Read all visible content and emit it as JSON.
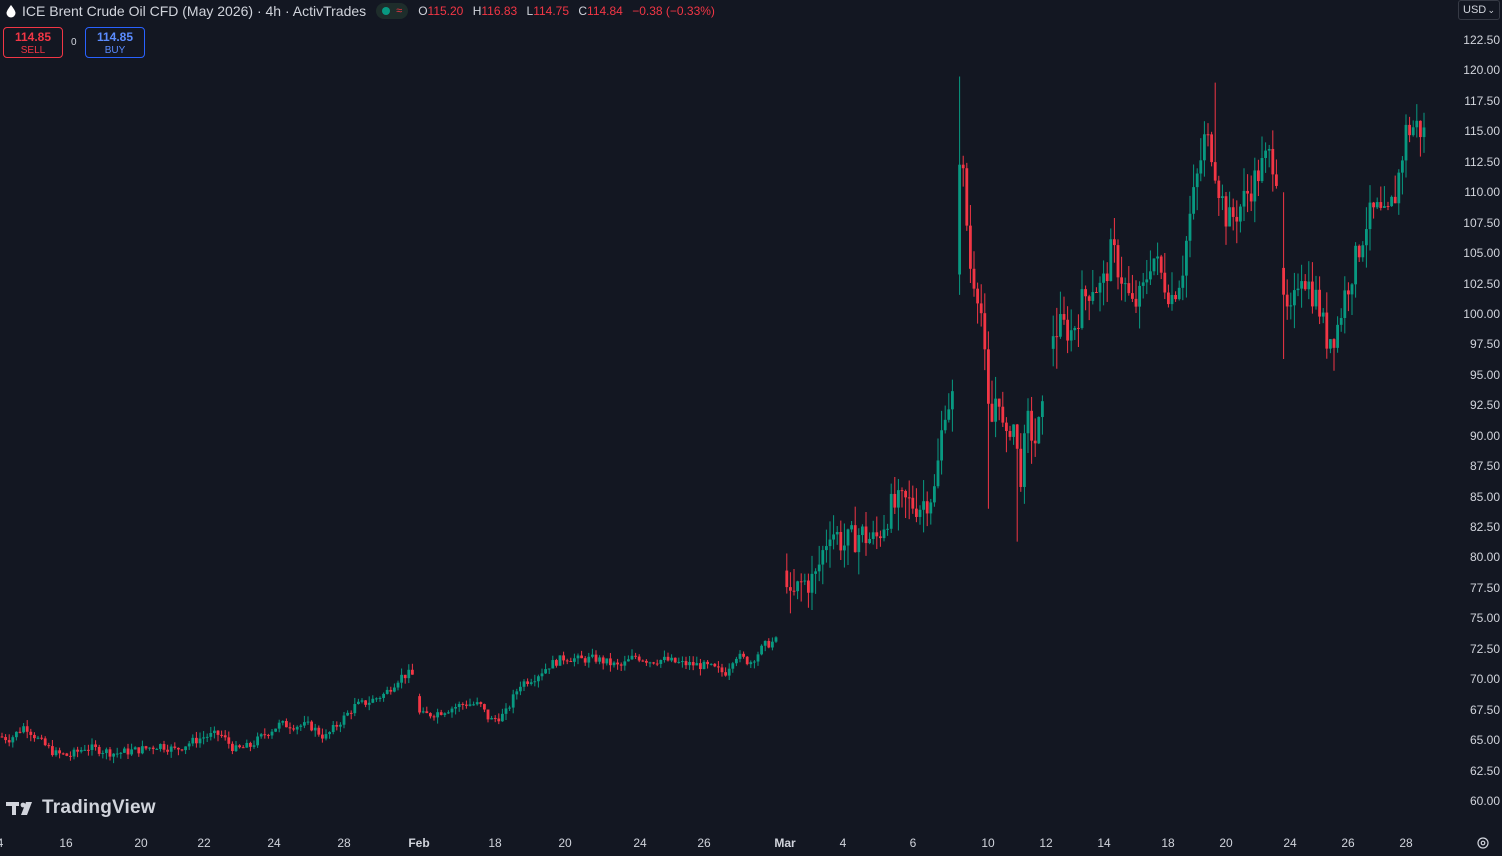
{
  "header": {
    "title": "ICE Brent Crude Oil CFD (May 2026) · 4h · ActivTrades",
    "approx_symbol": "≈",
    "ohlc": [
      {
        "k": "O",
        "v": "115.20"
      },
      {
        "k": "H",
        "v": "116.83"
      },
      {
        "k": "L",
        "v": "114.75"
      },
      {
        "k": "C",
        "v": "114.84"
      }
    ],
    "change": "−0.38 (−0.33%)"
  },
  "trade": {
    "sell_price": "114.85",
    "sell_label": "SELL",
    "spread": "0",
    "buy_price": "114.85",
    "buy_label": "BUY"
  },
  "currency": "USD",
  "logo_text": "TradingView",
  "colors": {
    "up": "#089981",
    "down": "#f23645",
    "background": "#131722",
    "text": "#d1d4dc",
    "buy": "#2962ff"
  },
  "chart_data": {
    "type": "candlestick",
    "title": "ICE Brent Crude Oil CFD (May 2026) · 4h · ActivTrades",
    "ylim": [
      60,
      122.5
    ],
    "y_ticks": [
      "122.50",
      "120.00",
      "117.50",
      "115.00",
      "112.50",
      "110.00",
      "107.50",
      "105.00",
      "102.50",
      "100.00",
      "97.50",
      "95.00",
      "92.50",
      "90.00",
      "87.50",
      "85.00",
      "82.50",
      "80.00",
      "77.50",
      "75.00",
      "72.50",
      "70.00",
      "67.50",
      "65.00",
      "62.50",
      "60.00"
    ],
    "x_ticks": [
      "16",
      "20",
      "22",
      "24",
      "28",
      "Feb",
      "18",
      "20",
      "24",
      "26",
      "Mar",
      "4",
      "6",
      "10",
      "12",
      "14",
      "18",
      "20",
      "24",
      "26",
      "28"
    ],
    "x_ticks_partial_left": "4",
    "close_path": [
      [
        0,
        65.3
      ],
      [
        10,
        65.1
      ],
      [
        25,
        66.2
      ],
      [
        40,
        64.9
      ],
      [
        55,
        63.9
      ],
      [
        70,
        63.7
      ],
      [
        85,
        64.4
      ],
      [
        100,
        64.2
      ],
      [
        115,
        63.9
      ],
      [
        130,
        64.1
      ],
      [
        145,
        64.3
      ],
      [
        160,
        64.6
      ],
      [
        175,
        64.2
      ],
      [
        190,
        64.8
      ],
      [
        205,
        65.3
      ],
      [
        220,
        65.5
      ],
      [
        235,
        64.2
      ],
      [
        250,
        64.5
      ],
      [
        265,
        65.5
      ],
      [
        280,
        66.3
      ],
      [
        295,
        66.2
      ],
      [
        310,
        66.2
      ],
      [
        325,
        65.2
      ],
      [
        340,
        66.5
      ],
      [
        355,
        67.8
      ],
      [
        370,
        68.2
      ],
      [
        385,
        68.8
      ],
      [
        400,
        70.2
      ],
      [
        412,
        70.5
      ],
      [
        420,
        67.0
      ],
      [
        435,
        67.2
      ],
      [
        450,
        67.6
      ],
      [
        465,
        68.0
      ],
      [
        480,
        67.9
      ],
      [
        490,
        66.6
      ],
      [
        505,
        67.1
      ],
      [
        520,
        69.6
      ],
      [
        535,
        70.2
      ],
      [
        550,
        71.2
      ],
      [
        565,
        71.8
      ],
      [
        580,
        71.6
      ],
      [
        595,
        71.7
      ],
      [
        610,
        71.3
      ],
      [
        620,
        71.0
      ],
      [
        635,
        71.9
      ],
      [
        650,
        71.5
      ],
      [
        665,
        71.6
      ],
      [
        680,
        71.3
      ],
      [
        695,
        71.2
      ],
      [
        710,
        71.0
      ],
      [
        725,
        70.5
      ],
      [
        735,
        72.0
      ],
      [
        750,
        71.4
      ],
      [
        765,
        72.8
      ],
      [
        778,
        73.2
      ],
      [
        785,
        80.0
      ],
      [
        790,
        76.1
      ],
      [
        800,
        77.8
      ],
      [
        815,
        78.2
      ],
      [
        830,
        82.5
      ],
      [
        845,
        81.0
      ],
      [
        860,
        82.0
      ],
      [
        875,
        81.3
      ],
      [
        890,
        84.0
      ],
      [
        905,
        84.5
      ],
      [
        920,
        84.3
      ],
      [
        935,
        85.5
      ],
      [
        945,
        92.5
      ],
      [
        953,
        93.1
      ],
      [
        960,
        114.5
      ],
      [
        970,
        104.0
      ],
      [
        980,
        101.5
      ],
      [
        990,
        90.0
      ],
      [
        998,
        94.5
      ],
      [
        1005,
        88.5
      ],
      [
        1012,
        92.0
      ],
      [
        1020,
        86.5
      ],
      [
        1028,
        91.0
      ],
      [
        1035,
        89.5
      ],
      [
        1045,
        92.5
      ],
      [
        1052,
        98.5
      ],
      [
        1062,
        99.0
      ],
      [
        1072,
        98.5
      ],
      [
        1082,
        101.0
      ],
      [
        1092,
        102.5
      ],
      [
        1102,
        102.0
      ],
      [
        1112,
        105.3
      ],
      [
        1122,
        103.0
      ],
      [
        1132,
        100.5
      ],
      [
        1142,
        101.5
      ],
      [
        1152,
        105.0
      ],
      [
        1162,
        103.0
      ],
      [
        1172,
        101.5
      ],
      [
        1182,
        103.5
      ],
      [
        1190,
        108.0
      ],
      [
        1198,
        111.5
      ],
      [
        1205,
        114.5
      ],
      [
        1212,
        113.5
      ],
      [
        1220,
        110.0
      ],
      [
        1228,
        107.5
      ],
      [
        1238,
        108.5
      ],
      [
        1248,
        110.0
      ],
      [
        1258,
        111.5
      ],
      [
        1268,
        113.0
      ],
      [
        1276,
        112.5
      ],
      [
        1282,
        100.5
      ],
      [
        1292,
        99.5
      ],
      [
        1300,
        104.0
      ],
      [
        1308,
        102.5
      ],
      [
        1318,
        101.0
      ],
      [
        1326,
        98.0
      ],
      [
        1336,
        98.5
      ],
      [
        1346,
        102.0
      ],
      [
        1356,
        104.5
      ],
      [
        1366,
        107.5
      ],
      [
        1376,
        108.5
      ],
      [
        1386,
        107.5
      ],
      [
        1396,
        110.0
      ],
      [
        1406,
        115.0
      ],
      [
        1416,
        115.5
      ],
      [
        1424,
        114.84
      ]
    ],
    "spikes": [
      {
        "x": 960,
        "high": 119.5,
        "low": 108.0
      },
      {
        "x": 988,
        "high": 96.0,
        "low": 84.0
      },
      {
        "x": 1018,
        "high": 88.5,
        "low": 81.3
      },
      {
        "x": 1214,
        "high": 119.0,
        "low": 112.0
      },
      {
        "x": 1280,
        "high": 110.0,
        "low": 96.3
      },
      {
        "x": 1056,
        "high": 100.5,
        "low": 95.5
      },
      {
        "x": 1418,
        "high": 116.8,
        "low": 114.5
      }
    ]
  }
}
